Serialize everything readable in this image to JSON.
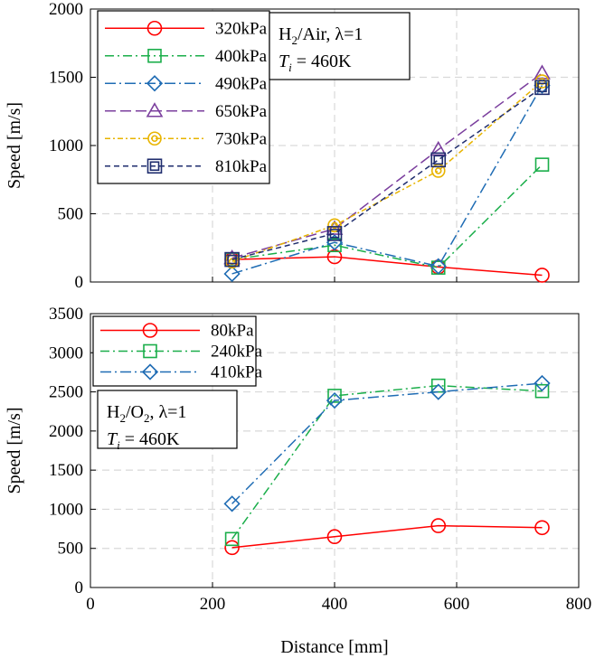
{
  "chart_data": [
    {
      "type": "line",
      "ylabel": "Speed [m/s]",
      "xlabel": "",
      "xlim": [
        0,
        800
      ],
      "ylim": [
        0,
        2000
      ],
      "xticks": [
        0,
        200,
        400,
        600,
        800
      ],
      "yticks": [
        0,
        500,
        1000,
        1500,
        2000
      ],
      "show_x_tick_labels": false,
      "grid": true,
      "legend_position": "top-left",
      "annotation": {
        "line1_main": "H",
        "line1_sub": "2",
        "line1_rest": "/Air, λ=1",
        "line2_italic": "T",
        "line2_sub": "i",
        "line2_rest": " = 460K"
      },
      "series": [
        {
          "name": "320kPa",
          "color": "#ff0000",
          "marker": "circle",
          "dash": "",
          "x": [
            232,
            400,
            570,
            740
          ],
          "y": [
            165,
            185,
            110,
            50
          ]
        },
        {
          "name": "400kPa",
          "color": "#1aae4a",
          "marker": "square",
          "dash": "10,4,2,4",
          "x": [
            232,
            400,
            570,
            740
          ],
          "y": [
            165,
            270,
            105,
            860
          ]
        },
        {
          "name": "490kPa",
          "color": "#1f6cb4",
          "marker": "diamond",
          "dash": "12,4,2,4",
          "x": [
            232,
            400,
            570,
            740
          ],
          "y": [
            60,
            290,
            115,
            1440
          ]
        },
        {
          "name": "650kPa",
          "color": "#7b3f9e",
          "marker": "triangle",
          "dash": "12,5",
          "x": [
            232,
            400,
            570,
            740
          ],
          "y": [
            175,
            390,
            970,
            1530
          ]
        },
        {
          "name": "730kPa",
          "color": "#e8b400",
          "marker": "circle-dot",
          "dash": "6,3,2,3",
          "x": [
            232,
            400,
            570,
            740
          ],
          "y": [
            150,
            415,
            815,
            1470
          ]
        },
        {
          "name": "810kPa",
          "color": "#1f2d6e",
          "marker": "square-x",
          "dash": "6,4",
          "x": [
            232,
            400,
            570,
            740
          ],
          "y": [
            165,
            355,
            895,
            1425
          ]
        }
      ]
    },
    {
      "type": "line",
      "ylabel": "Speed [m/s]",
      "xlabel": "Distance [mm]",
      "xlim": [
        0,
        800
      ],
      "ylim": [
        0,
        3500
      ],
      "xticks": [
        0,
        200,
        400,
        600,
        800
      ],
      "yticks": [
        0,
        500,
        1000,
        1500,
        2000,
        2500,
        3000,
        3500
      ],
      "show_x_tick_labels": true,
      "grid": true,
      "legend_position": "top-left",
      "annotation": {
        "line1_main": "H",
        "line1_sub": "2",
        "line1_rest": "/O",
        "line1_sub2": "2",
        "line1_rest2": ", λ=1",
        "line2_italic": "T",
        "line2_sub": "i",
        "line2_rest": " = 460K"
      },
      "series": [
        {
          "name": "80kPa",
          "color": "#ff0000",
          "marker": "circle",
          "dash": "",
          "x": [
            232,
            400,
            570,
            740
          ],
          "y": [
            510,
            650,
            790,
            765
          ]
        },
        {
          "name": "240kPa",
          "color": "#1aae4a",
          "marker": "square",
          "dash": "10,4,2,4",
          "x": [
            232,
            400,
            570,
            740
          ],
          "y": [
            620,
            2450,
            2580,
            2510
          ]
        },
        {
          "name": "410kPa",
          "color": "#1f6cb4",
          "marker": "diamond",
          "dash": "12,4,2,4",
          "x": [
            232,
            400,
            570,
            740
          ],
          "y": [
            1070,
            2390,
            2500,
            2610
          ]
        }
      ]
    }
  ]
}
